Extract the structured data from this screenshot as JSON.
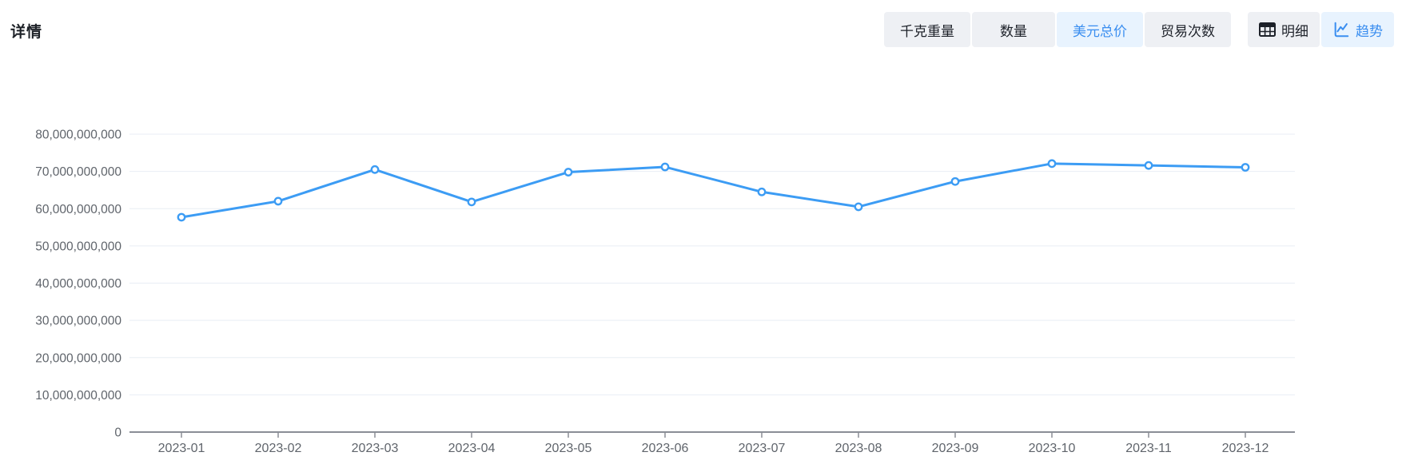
{
  "page": {
    "title": "详情"
  },
  "toolbar": {
    "metric_buttons": [
      {
        "label": "千克重量",
        "active": false
      },
      {
        "label": "数量",
        "active": false
      },
      {
        "label": "美元总价",
        "active": true
      },
      {
        "label": "贸易次数",
        "active": false
      }
    ],
    "view_buttons": [
      {
        "label": "明细",
        "icon": "table-icon",
        "active": false
      },
      {
        "label": "趋势",
        "icon": "trend-line-icon",
        "active": true
      }
    ]
  },
  "colors": {
    "accent": "#3a8ef0",
    "accent_bg": "#e8f3fe",
    "line": "#3c9cf4",
    "button_bg": "#eef0f4",
    "text_dark": "#1d2129",
    "axis_text": "#5f646b",
    "grid_line": "#e9edf4",
    "axis_line": "#8a8e96"
  },
  "chart_data": {
    "type": "line",
    "title": "",
    "xlabel": "",
    "ylabel": "",
    "categories": [
      "2023-01",
      "2023-02",
      "2023-03",
      "2023-04",
      "2023-05",
      "2023-06",
      "2023-07",
      "2023-08",
      "2023-09",
      "2023-10",
      "2023-11",
      "2023-12"
    ],
    "series": [
      {
        "name": "美元总价",
        "values": [
          57700000000,
          62000000000,
          70500000000,
          61800000000,
          69800000000,
          71200000000,
          64500000000,
          60500000000,
          67300000000,
          72100000000,
          71600000000,
          71100000000
        ]
      }
    ],
    "ylim": [
      0,
      80000000000
    ],
    "y_tick_step": 10000000000,
    "y_ticks": [
      "0",
      "10,000,000,000",
      "20,000,000,000",
      "30,000,000,000",
      "40,000,000,000",
      "50,000,000,000",
      "60,000,000,000",
      "70,000,000,000",
      "80,000,000,000"
    ],
    "grid": true,
    "legend": false,
    "marker": "hollow-circle"
  }
}
